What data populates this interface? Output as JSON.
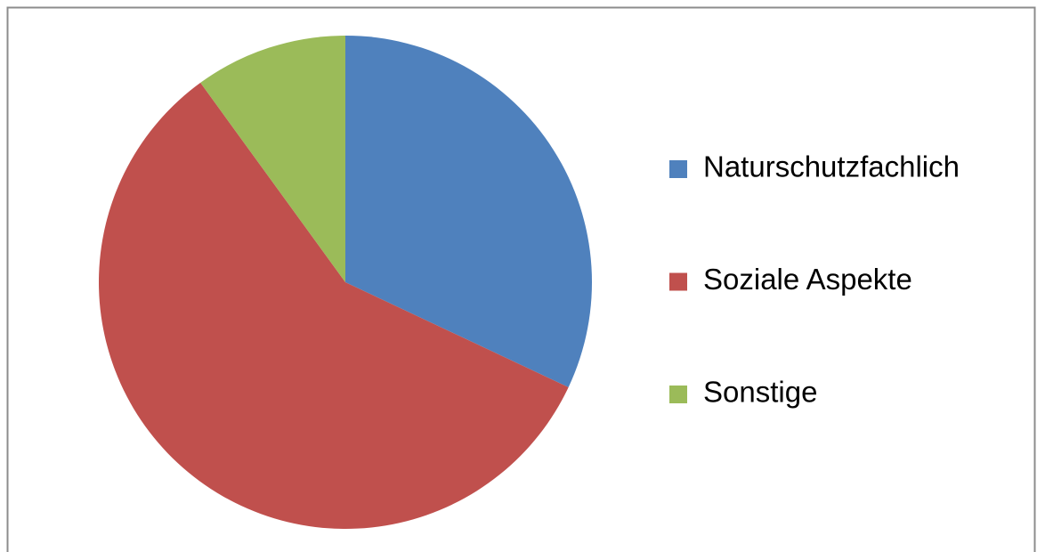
{
  "chart_data": {
    "type": "pie",
    "categories": [
      "Naturschutzfachlich",
      "Soziale Aspekte",
      "Sonstige"
    ],
    "values": [
      32,
      58,
      10
    ],
    "colors": [
      "#4f81bd",
      "#c0504d",
      "#9bbb59"
    ],
    "legend": "right"
  }
}
